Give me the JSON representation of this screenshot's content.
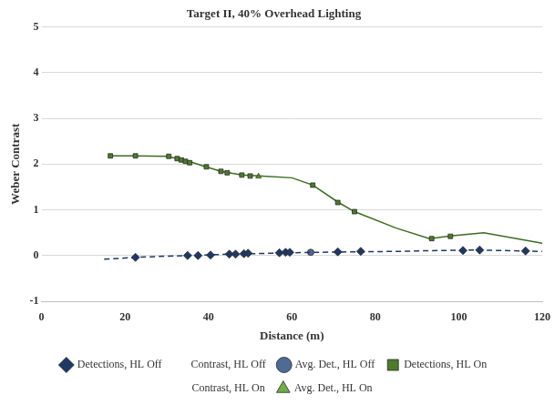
{
  "chart_data": {
    "type": "scatter",
    "title": "Target II, 40% Overhead Lighting",
    "x_label": "Distance (m)",
    "y_label": "Weber Contrast",
    "xlim": [
      0,
      120
    ],
    "xticks": [
      0,
      20,
      40,
      60,
      80,
      100,
      120
    ],
    "ylim": [
      -1,
      5
    ],
    "yticks": [
      -1,
      0,
      1,
      2,
      3,
      4,
      5
    ],
    "grid": "y",
    "legend": "bottom",
    "series": [
      {
        "name": "Detections, HL Off",
        "type": "scatter",
        "marker": "diamond",
        "color": "#1f3864",
        "x": [
          22.5,
          35,
          37.5,
          40.5,
          45,
          46.5,
          48.5,
          49.5,
          57,
          58.5,
          59.5,
          71,
          76.5,
          101,
          105,
          116
        ],
        "values": [
          -0.04,
          0.0,
          0.0,
          0.01,
          0.03,
          0.03,
          0.04,
          0.05,
          0.06,
          0.07,
          0.07,
          0.08,
          0.09,
          0.11,
          0.12,
          0.1
        ]
      },
      {
        "name": "Contrast, HL Off",
        "type": "line",
        "marker": "none",
        "line_style": "dashed",
        "color": "#1f3864",
        "x": [
          15,
          25,
          35,
          45,
          55,
          65,
          75,
          85,
          95,
          105,
          110,
          120
        ],
        "values": [
          -0.08,
          -0.03,
          0.0,
          0.03,
          0.05,
          0.07,
          0.08,
          0.09,
          0.11,
          0.12,
          0.11,
          0.09
        ]
      },
      {
        "name": "Avg. Det., HL Off",
        "type": "scatter",
        "marker": "circle",
        "color": "#4f6a93",
        "x": [
          64.5
        ],
        "values": [
          0.07
        ]
      },
      {
        "name": "Detections, HL On",
        "type": "scatter",
        "marker": "square",
        "color": "#4e7a2c",
        "x": [
          16.5,
          22.5,
          30.5,
          32.5,
          33.5,
          34.5,
          35.5,
          39.5,
          43,
          44.5,
          48,
          50,
          65,
          71,
          75,
          93.5,
          98
        ],
        "values": [
          2.18,
          2.18,
          2.17,
          2.12,
          2.09,
          2.06,
          2.03,
          1.94,
          1.84,
          1.81,
          1.76,
          1.74,
          1.54,
          1.16,
          0.96,
          0.37,
          0.42
        ]
      },
      {
        "name": "Contrast, HL On",
        "type": "line",
        "marker": "none",
        "line_style": "solid",
        "color": "#3d6b1f",
        "x": [
          16,
          22,
          30,
          35,
          39,
          43,
          48,
          52,
          60,
          65,
          71,
          75,
          85,
          93,
          98,
          106,
          120
        ],
        "values": [
          2.18,
          2.18,
          2.17,
          2.07,
          1.95,
          1.84,
          1.76,
          1.74,
          1.7,
          1.54,
          1.17,
          0.96,
          0.6,
          0.37,
          0.43,
          0.5,
          0.27
        ]
      },
      {
        "name": "Avg. Det., HL On",
        "type": "scatter",
        "marker": "triangle",
        "color": "#70ad47",
        "x": [
          52
        ],
        "values": [
          1.73
        ]
      }
    ]
  }
}
